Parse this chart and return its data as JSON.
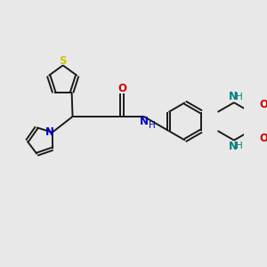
{
  "bg_color": "#e8e8e8",
  "bond_color": "#1a1a1a",
  "S_color": "#c8c800",
  "N_color": "#0000cc",
  "O_color": "#cc0000",
  "NH_color": "#008080",
  "figsize": [
    3.0,
    3.0
  ],
  "dpi": 100,
  "lw": 1.4,
  "xlim": [
    0,
    10
  ],
  "ylim": [
    0,
    10
  ]
}
